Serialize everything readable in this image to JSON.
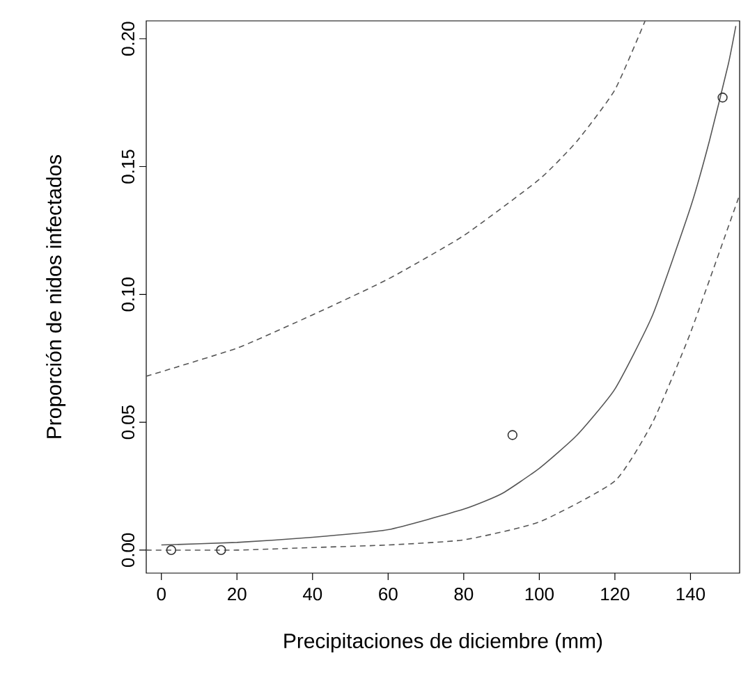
{
  "chart_data": {
    "type": "scatter",
    "xlabel": "Precipitaciones de diciembre (mm)",
    "ylabel": "Proporción de nidos infectados",
    "xlim": [
      -4,
      153
    ],
    "ylim": [
      -0.009,
      0.207
    ],
    "xticks": [
      0,
      20,
      40,
      60,
      80,
      100,
      120,
      140
    ],
    "yticks": [
      {
        "value": 0,
        "label": "0.00"
      },
      {
        "value": 0.05,
        "label": "0.05"
      },
      {
        "value": 0.1,
        "label": "0.10"
      },
      {
        "value": 0.15,
        "label": "0.15"
      },
      {
        "value": 0.2,
        "label": "0.20"
      }
    ],
    "grid": false,
    "series": [
      {
        "color": "#333333",
        "marker": "circle",
        "x": [
          2.6,
          15.8,
          92.9,
          148.5
        ],
        "values": [
          0,
          0,
          0.045,
          0.177
        ]
      },
      {
        "type": "line",
        "color": "#555555",
        "line_style": "solid",
        "marker": "none",
        "x": [
          0,
          20,
          40,
          60,
          80,
          90,
          100,
          110,
          120,
          130,
          140,
          145,
          150,
          152
        ],
        "values": [
          0.002,
          0.003,
          0.005,
          0.008,
          0.016,
          0.022,
          0.032,
          0.045,
          0.063,
          0.092,
          0.134,
          0.16,
          0.19,
          0.205
        ]
      },
      {
        "type": "line",
        "color": "#555555",
        "line_style": "dashed",
        "marker": "none",
        "x": [
          -4,
          20,
          40,
          60,
          80,
          100,
          110,
          120,
          128
        ],
        "values": [
          0.068,
          0.079,
          0.092,
          0.106,
          0.123,
          0.145,
          0.16,
          0.18,
          0.207
        ]
      },
      {
        "type": "line",
        "color": "#555555",
        "line_style": "dashed",
        "marker": "none",
        "x": [
          -4,
          20,
          40,
          60,
          80,
          100,
          120,
          130,
          140,
          153
        ],
        "values": [
          0,
          0,
          0.001,
          0.002,
          0.004,
          0.011,
          0.027,
          0.05,
          0.085,
          0.139
        ]
      }
    ]
  }
}
